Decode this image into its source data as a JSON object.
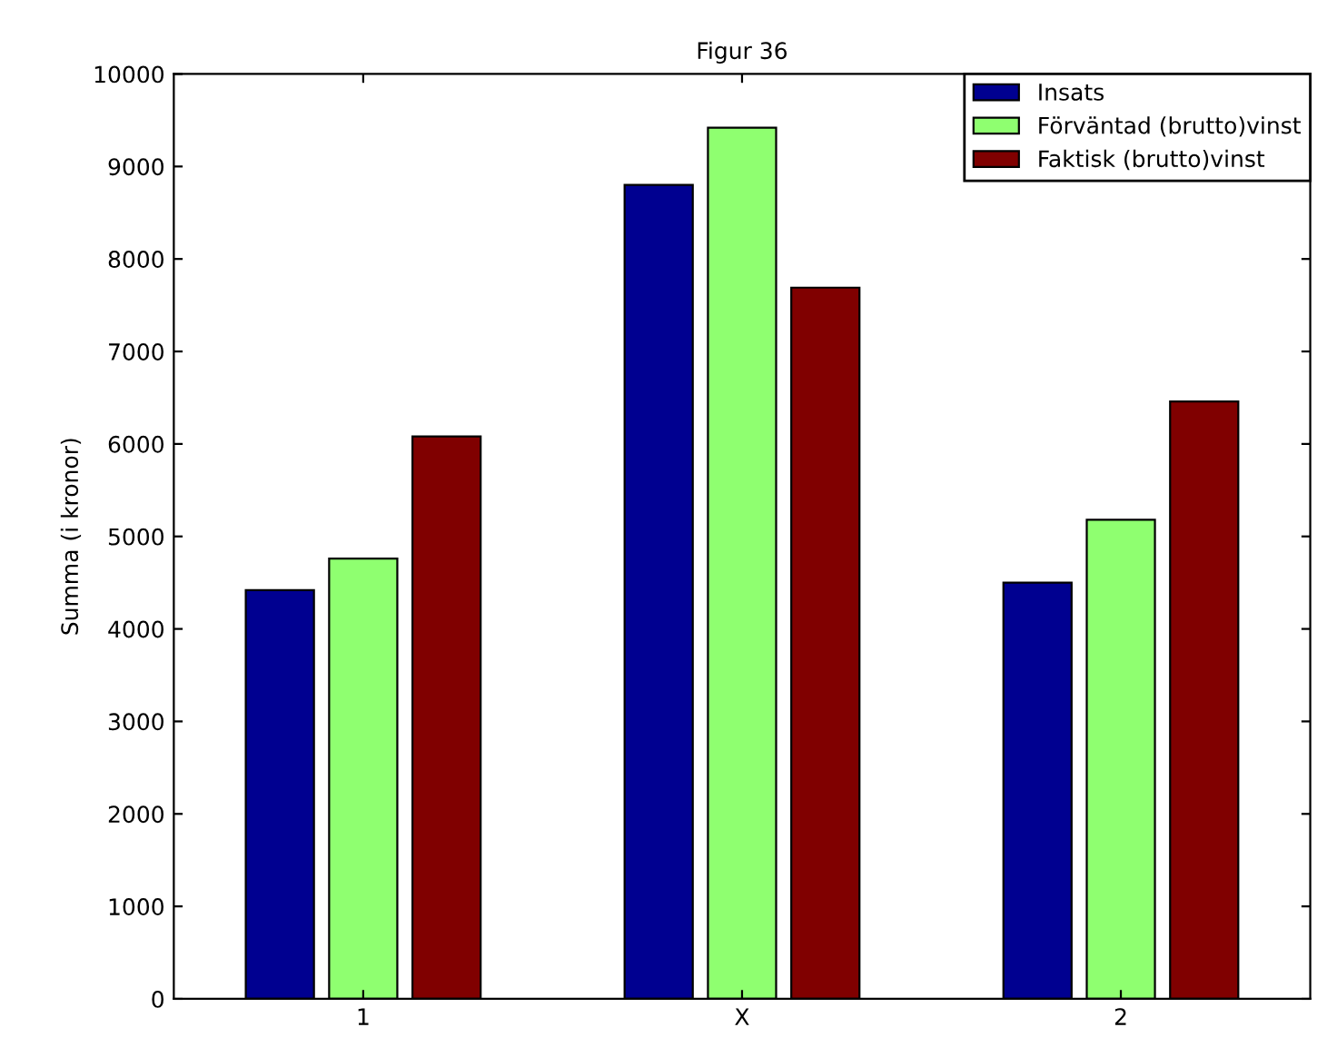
{
  "chart_data": {
    "type": "bar",
    "title": "Figur 36",
    "ylabel": "Summa (i kronor)",
    "categories": [
      "1",
      "X",
      "2"
    ],
    "series": [
      {
        "name": "Insats",
        "color": "#000090",
        "values": [
          4420,
          8800,
          4500
        ]
      },
      {
        "name": "Förväntad (brutto)vinst",
        "color": "#8fff70",
        "values": [
          4760,
          9420,
          5180
        ]
      },
      {
        "name": "Faktisk (brutto)vinst",
        "color": "#800000",
        "values": [
          6080,
          7690,
          6460
        ]
      }
    ],
    "ylim": [
      0,
      10000
    ],
    "yticks": [
      0,
      1000,
      2000,
      3000,
      4000,
      5000,
      6000,
      7000,
      8000,
      9000,
      10000
    ],
    "grid": false,
    "legend": "top right"
  }
}
